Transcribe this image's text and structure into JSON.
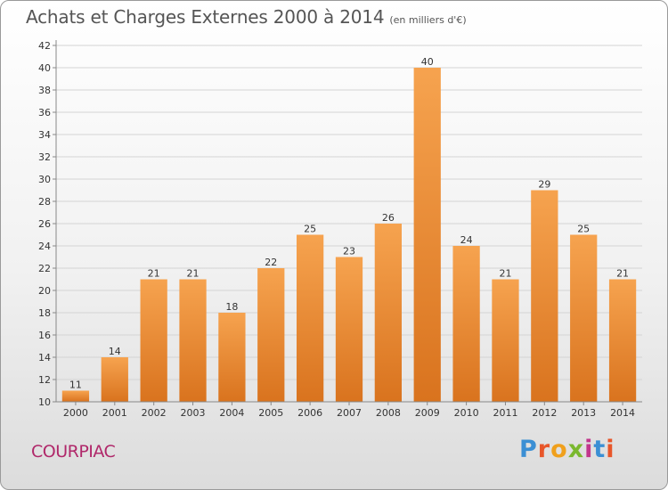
{
  "header": {
    "title": "Achats et Charges Externes 2000 à 2014",
    "subtitle": "(en milliers d'€)"
  },
  "footer": {
    "commune": "COURPIAC",
    "logo_text": "Proxiti",
    "logo_colors": [
      "#3b8fd4",
      "#e8562a",
      "#f0a01c",
      "#7ab82e",
      "#c2368c",
      "#3b8fd4",
      "#e8562a"
    ]
  },
  "colors": {
    "bar_top": "#f6a34f",
    "bar_bottom": "#d9731e",
    "grid": "#d4d4d4",
    "axis": "#888888",
    "commune": "#b0286a"
  },
  "chart_data": {
    "type": "bar",
    "title": "Achats et Charges Externes 2000 à 2014",
    "subtitle": "(en milliers d'€)",
    "xlabel": "",
    "ylabel": "",
    "categories": [
      "2000",
      "2001",
      "2002",
      "2003",
      "2004",
      "2005",
      "2006",
      "2007",
      "2008",
      "2009",
      "2010",
      "2011",
      "2012",
      "2013",
      "2014"
    ],
    "values": [
      11,
      14,
      21,
      21,
      18,
      22,
      25,
      23,
      26,
      40,
      24,
      21,
      29,
      25,
      21
    ],
    "ylim": [
      10,
      42
    ],
    "yticks": [
      10,
      12,
      14,
      16,
      18,
      20,
      22,
      24,
      26,
      28,
      30,
      32,
      34,
      36,
      38,
      40,
      42
    ],
    "grid": true,
    "legend": "none"
  }
}
